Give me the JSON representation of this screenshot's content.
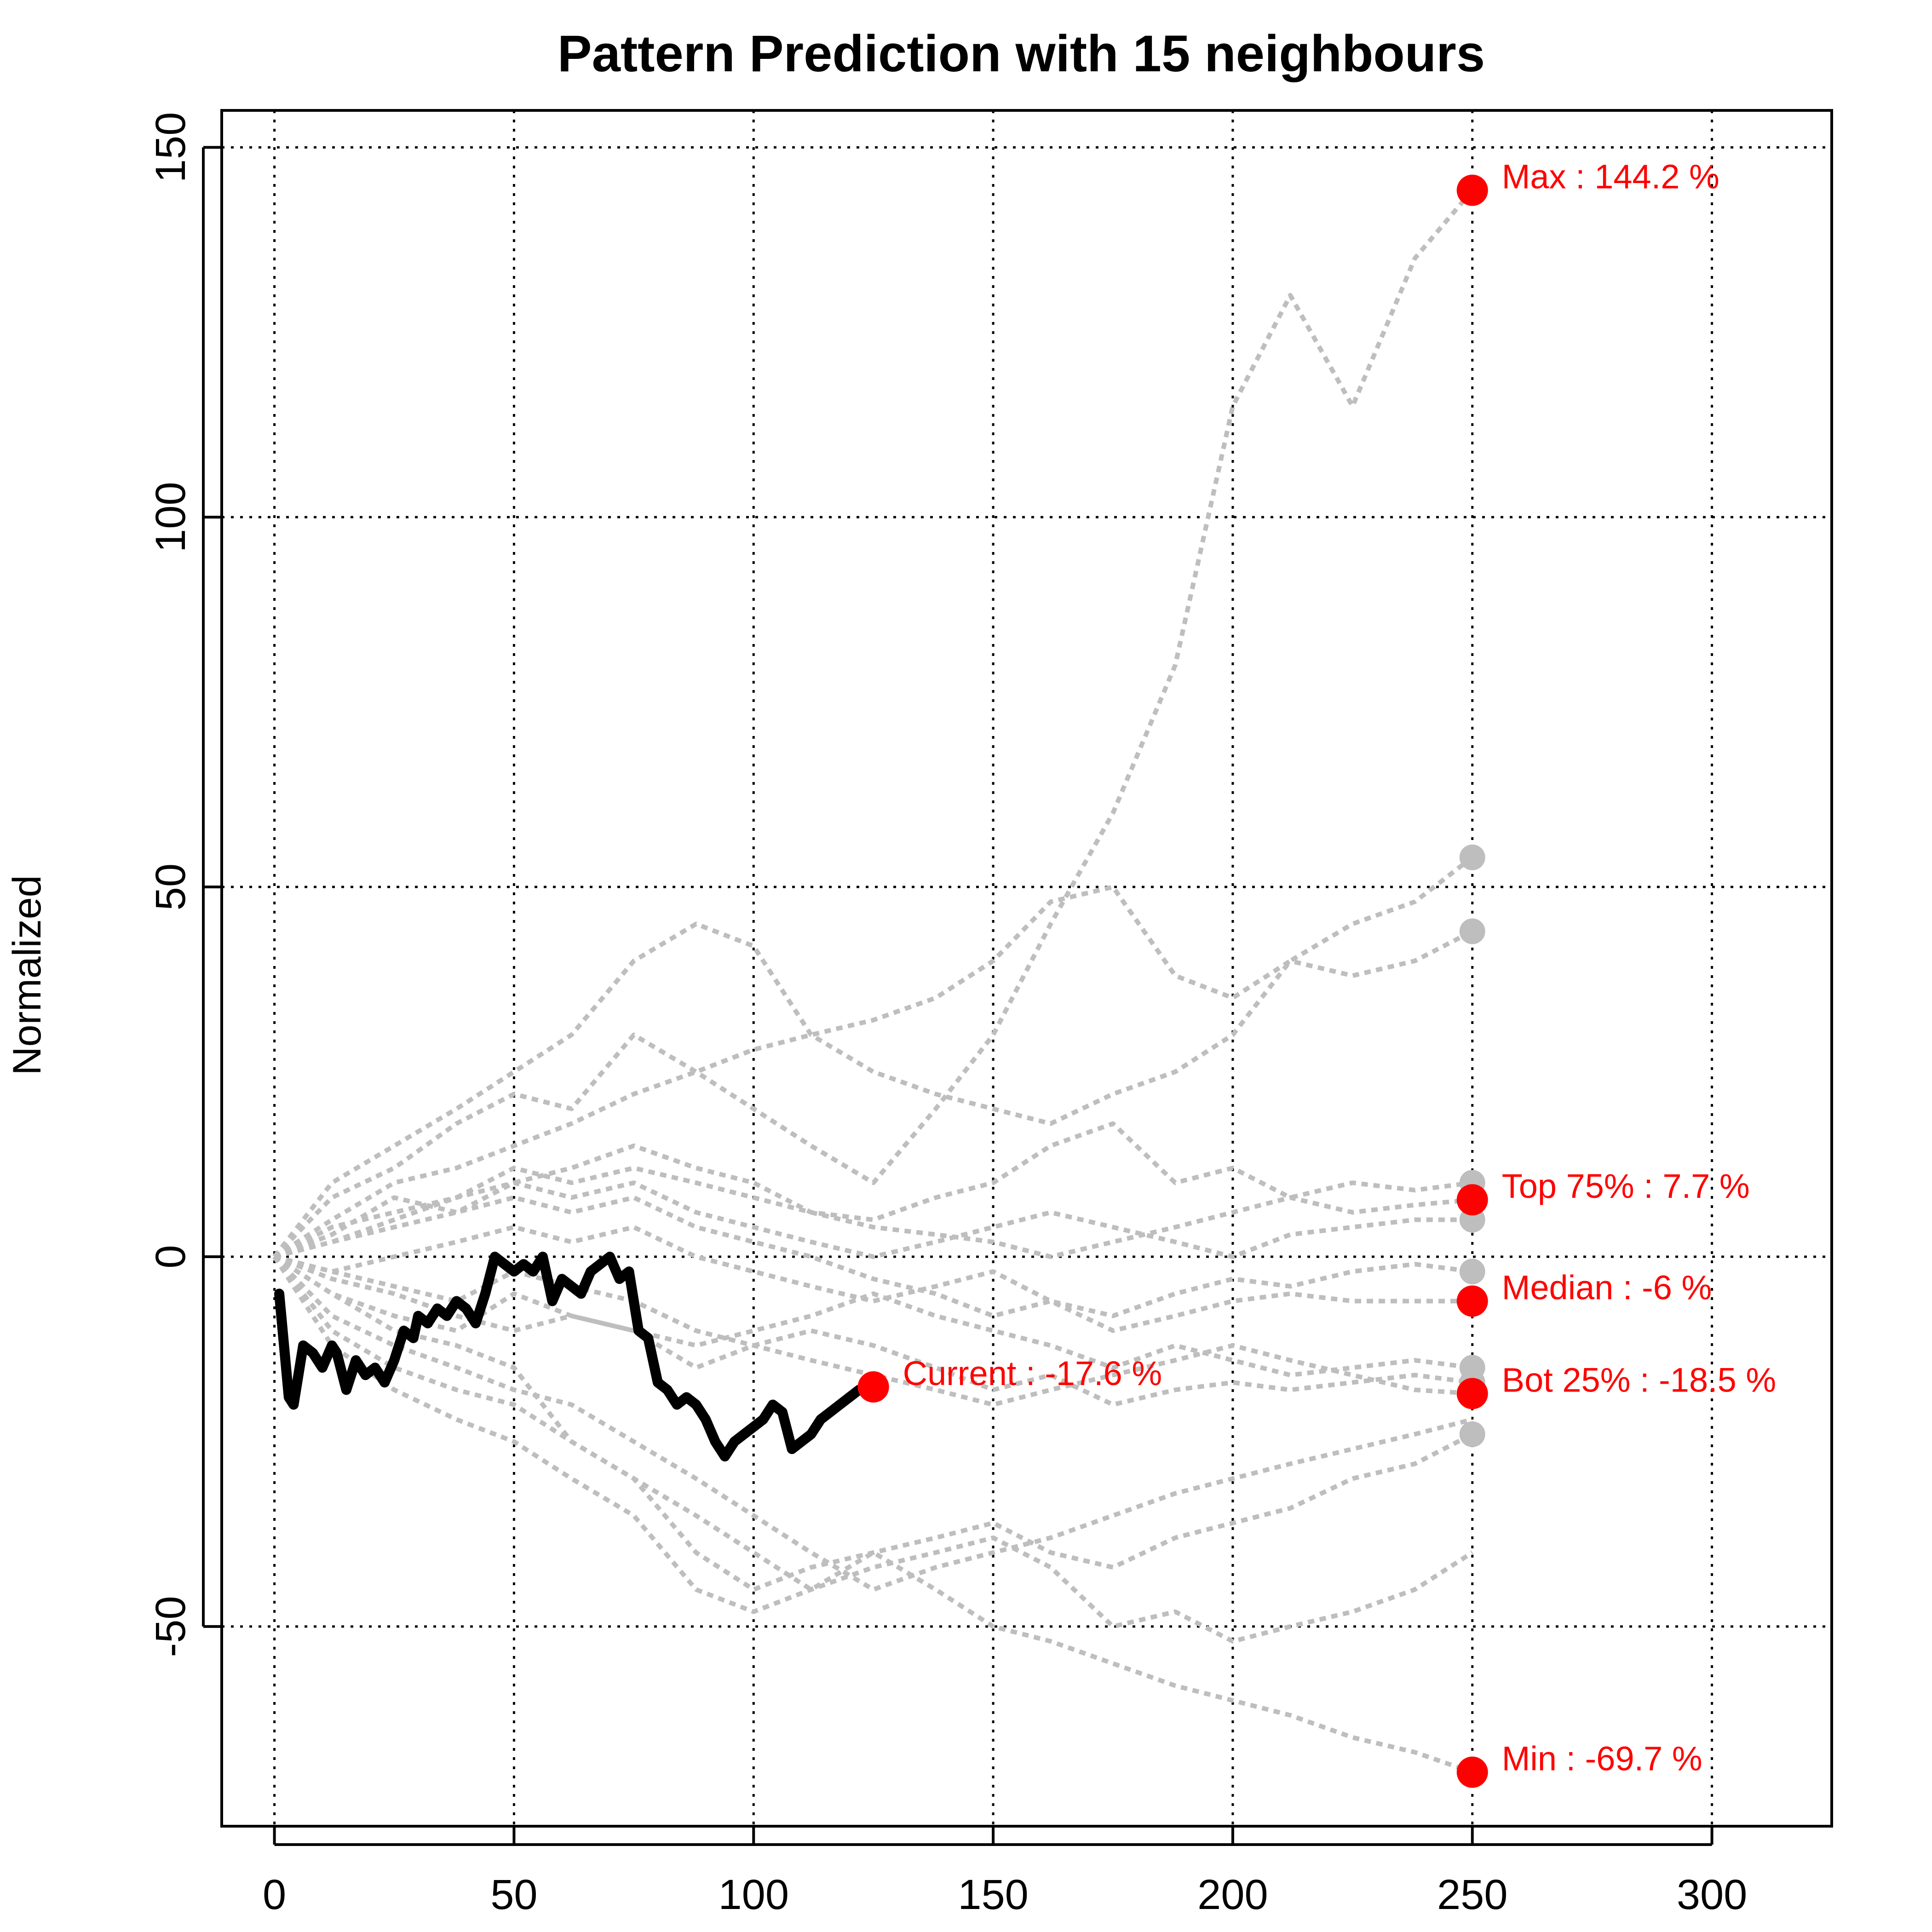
{
  "chart_data": {
    "type": "line",
    "title": "Pattern Prediction with 15 neighbours",
    "xlabel": "",
    "ylabel": "Normalized",
    "xlim": [
      -11,
      325
    ],
    "ylim": [
      -77,
      155
    ],
    "xticks": [
      0,
      50,
      100,
      150,
      200,
      250,
      300
    ],
    "yticks": [
      -50,
      0,
      50,
      100,
      150
    ],
    "grid": true,
    "colors": {
      "current": "#000000",
      "neighbours": "#bebebe",
      "annotation": "#ff0000",
      "grid": "#000000"
    },
    "current_series": {
      "name": "Current",
      "x": [
        1,
        3,
        4,
        6,
        8,
        10,
        12,
        13,
        15,
        17,
        19,
        21,
        23,
        25,
        27,
        29,
        30,
        32,
        34,
        36,
        38,
        40,
        42,
        44,
        46,
        48,
        50,
        52,
        54,
        56,
        58,
        60,
        62,
        64,
        66,
        68,
        70,
        72,
        74,
        76,
        78,
        80,
        82,
        84,
        86,
        88,
        90,
        92,
        94,
        96,
        98,
        100,
        102,
        104,
        106,
        108,
        110,
        112,
        114,
        116,
        118,
        120,
        122,
        124,
        125
      ],
      "y": [
        -5,
        -19,
        -20,
        -12,
        -13,
        -15,
        -12,
        -13,
        -18,
        -14,
        -16,
        -15,
        -17,
        -14,
        -10,
        -11,
        -8,
        -9,
        -7,
        -8,
        -6,
        -7,
        -9,
        -5,
        0,
        -1,
        -2,
        -1,
        -2,
        0,
        -6,
        -3,
        -4,
        -5,
        -2,
        -1,
        0,
        -3,
        -2,
        -10,
        -11,
        -17,
        -18,
        -20,
        -19,
        -20,
        -22,
        -25,
        -27,
        -25,
        -24,
        -23,
        -22,
        -20,
        -21,
        -26,
        -25,
        -24,
        -22,
        -21,
        -20,
        -19,
        -18,
        -17.6,
        -17.6
      ]
    },
    "neighbour_x": [
      0,
      12,
      25,
      38,
      50,
      62,
      75,
      88,
      100,
      112,
      125,
      138,
      150,
      162,
      175,
      188,
      200,
      212,
      225,
      238,
      250
    ],
    "neighbours": [
      {
        "y": [
          0,
          8,
          12,
          18,
          22,
          20,
          30,
          25,
          20,
          15,
          10,
          20,
          30,
          45,
          60,
          80,
          115,
          130,
          115,
          135,
          144.2
        ]
      },
      {
        "y": [
          0,
          10,
          15,
          20,
          25,
          30,
          40,
          45,
          42,
          30,
          25,
          22,
          20,
          18,
          22,
          25,
          30,
          40,
          45,
          48,
          54
        ]
      },
      {
        "y": [
          0,
          5,
          10,
          12,
          15,
          18,
          22,
          25,
          28,
          30,
          32,
          35,
          40,
          48,
          50,
          38,
          35,
          40,
          38,
          40,
          44
        ]
      },
      {
        "y": [
          0,
          3,
          8,
          6,
          10,
          12,
          15,
          12,
          10,
          6,
          5,
          8,
          10,
          15,
          18,
          10,
          12,
          8,
          10,
          9,
          10
        ]
      },
      {
        "y": [
          0,
          2,
          5,
          8,
          12,
          10,
          12,
          10,
          8,
          6,
          4,
          3,
          2,
          0,
          2,
          4,
          6,
          8,
          6,
          7,
          7.7
        ]
      },
      {
        "y": [
          0,
          4,
          6,
          8,
          10,
          8,
          10,
          6,
          4,
          2,
          0,
          2,
          4,
          6,
          4,
          2,
          0,
          3,
          4,
          5,
          5
        ]
      },
      {
        "y": [
          0,
          -2,
          0,
          2,
          4,
          2,
          4,
          0,
          -2,
          -4,
          -6,
          -4,
          -2,
          -6,
          -8,
          -5,
          -3,
          -4,
          -2,
          -1,
          -2
        ]
      },
      {
        "y": [
          0,
          2,
          4,
          6,
          8,
          6,
          8,
          4,
          2,
          0,
          -3,
          -5,
          -8,
          -6,
          -10,
          -8,
          -6,
          -5,
          -6,
          -6,
          -6
        ]
      },
      {
        "y": [
          0,
          -3,
          -5,
          -8,
          -10,
          -8,
          -10,
          -12,
          -10,
          -8,
          -5,
          -8,
          -10,
          -12,
          -15,
          -12,
          -14,
          -16,
          -15,
          -14,
          -15
        ]
      },
      {
        "y": [
          0,
          -5,
          -8,
          -10,
          -5,
          -8,
          -10,
          -15,
          -12,
          -10,
          -12,
          -15,
          -18,
          -16,
          -20,
          -18,
          -17,
          -18,
          -17,
          -16,
          -17
        ]
      },
      {
        "y": [
          0,
          -2,
          -4,
          -6,
          -2,
          -4,
          -6,
          -10,
          -12,
          -14,
          -16,
          -18,
          -20,
          -18,
          -16,
          -14,
          -12,
          -14,
          -16,
          -18,
          -18.5
        ]
      },
      {
        "y": [
          0,
          -8,
          -12,
          -15,
          -18,
          -20,
          -25,
          -30,
          -35,
          -40,
          -45,
          -42,
          -40,
          -38,
          -35,
          -32,
          -30,
          -28,
          -26,
          -24,
          -22
        ]
      },
      {
        "y": [
          0,
          -10,
          -15,
          -18,
          -20,
          -25,
          -30,
          -40,
          -45,
          -42,
          -40,
          -38,
          -36,
          -40,
          -42,
          -38,
          -36,
          -34,
          -30,
          -28,
          -24
        ]
      },
      {
        "y": [
          0,
          -12,
          -18,
          -22,
          -25,
          -30,
          -35,
          -45,
          -48,
          -45,
          -42,
          -40,
          -38,
          -42,
          -50,
          -48,
          -52,
          -50,
          -48,
          -45,
          -40
        ]
      },
      {
        "y": [
          0,
          -5,
          -10,
          -12,
          -15,
          -25,
          -30,
          -35,
          -40,
          -45,
          -40,
          -45,
          -50,
          -52,
          -55,
          -58,
          -60,
          -62,
          -65,
          -67,
          -69.7
        ]
      }
    ],
    "end_markers_grey": [
      {
        "x": 250,
        "y": 54
      },
      {
        "x": 250,
        "y": 44
      },
      {
        "x": 250,
        "y": 10
      },
      {
        "x": 250,
        "y": 5
      },
      {
        "x": 250,
        "y": -2
      },
      {
        "x": 250,
        "y": -15
      },
      {
        "x": 250,
        "y": -17
      },
      {
        "x": 250,
        "y": -24
      }
    ],
    "annotations": [
      {
        "x": 250,
        "y": 144.2,
        "label": "Max : 144.2 %"
      },
      {
        "x": 250,
        "y": 7.7,
        "label": "Top 75% : 7.7 %"
      },
      {
        "x": 250,
        "y": -6,
        "label": "Median : -6 %"
      },
      {
        "x": 250,
        "y": -18.5,
        "label": "Bot 25% : -18.5 %"
      },
      {
        "x": 250,
        "y": -69.7,
        "label": "Min : -69.7 %"
      },
      {
        "x": 125,
        "y": -17.6,
        "label": "Current : -17.6 %"
      }
    ]
  }
}
